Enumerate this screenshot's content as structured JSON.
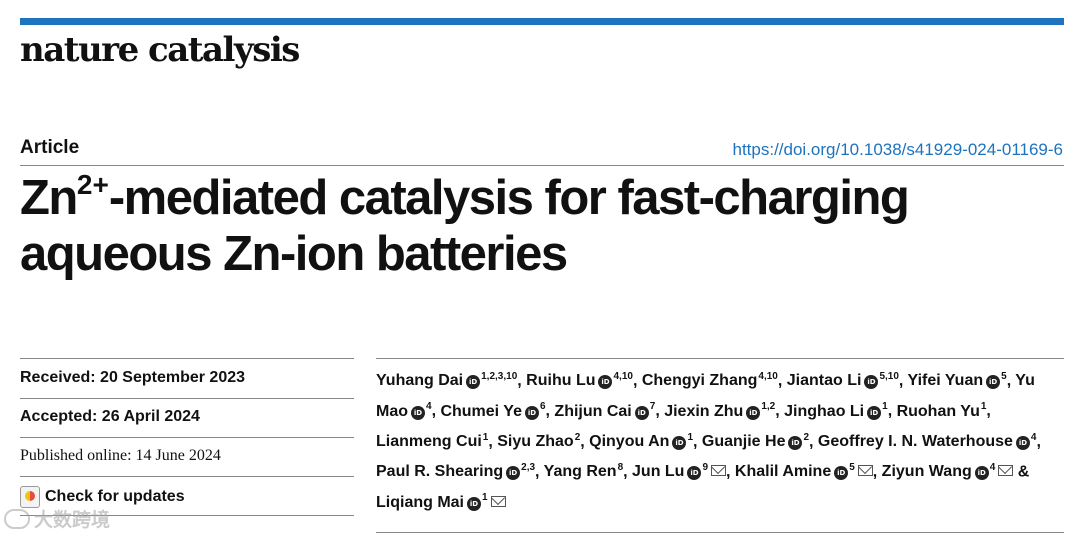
{
  "journal": {
    "name": "nature catalysis"
  },
  "article": {
    "type": "Article",
    "doi": "https://doi.org/10.1038/s41929-024-01169-6",
    "title": {
      "part1": "Zn",
      "sup": "2+",
      "part2": "-mediated catalysis for fast-charging aqueous Zn-ion batteries"
    }
  },
  "dates": {
    "received": "Received: 20 September 2023",
    "accepted": "Accepted: 26 April 2024",
    "published": "Published online: 14 June 2024"
  },
  "check_updates": {
    "label": "Check for updates"
  },
  "authors": [
    {
      "name": "Yuhang Dai",
      "orcid": true,
      "aff": "1,2,3,10",
      "email": false,
      "sep": ", "
    },
    {
      "name": "Ruihu Lu",
      "orcid": true,
      "aff": "4,10",
      "email": false,
      "sep": ", "
    },
    {
      "name": "Chengyi Zhang",
      "orcid": false,
      "aff": "4,10",
      "email": false,
      "sep": ", "
    },
    {
      "name": "Jiantao Li",
      "orcid": true,
      "aff": "5,10",
      "email": false,
      "sep": ", "
    },
    {
      "name": "Yifei Yuan",
      "orcid": true,
      "aff": "5",
      "email": false,
      "sep": ", "
    },
    {
      "name": "Yu Mao",
      "orcid": true,
      "aff": "4",
      "email": false,
      "sep": ", "
    },
    {
      "name": "Chumei Ye",
      "orcid": true,
      "aff": "6",
      "email": false,
      "sep": ", "
    },
    {
      "name": "Zhijun Cai",
      "orcid": true,
      "aff": "7",
      "email": false,
      "sep": ", "
    },
    {
      "name": "Jiexin Zhu",
      "orcid": true,
      "aff": "1,2",
      "email": false,
      "sep": ", "
    },
    {
      "name": "Jinghao Li",
      "orcid": true,
      "aff": "1",
      "email": false,
      "sep": ", "
    },
    {
      "name": "Ruohan Yu",
      "orcid": false,
      "aff": "1",
      "email": false,
      "sep": ", "
    },
    {
      "name": "Lianmeng Cui",
      "orcid": false,
      "aff": "1",
      "email": false,
      "sep": ", "
    },
    {
      "name": "Siyu Zhao",
      "orcid": false,
      "aff": "2",
      "email": false,
      "sep": ", "
    },
    {
      "name": "Qinyou An",
      "orcid": true,
      "aff": "1",
      "email": false,
      "sep": ", "
    },
    {
      "name": "Guanjie He",
      "orcid": true,
      "aff": "2",
      "email": false,
      "sep": ", "
    },
    {
      "name": "Geoffrey I. N. Waterhouse",
      "orcid": true,
      "aff": "4",
      "email": false,
      "sep": ", "
    },
    {
      "name": "Paul R. Shearing",
      "orcid": true,
      "aff": "2,3",
      "email": false,
      "sep": ", "
    },
    {
      "name": "Yang Ren",
      "orcid": false,
      "aff": "8",
      "email": false,
      "sep": ", "
    },
    {
      "name": "Jun Lu",
      "orcid": true,
      "aff": "9",
      "email": true,
      "sep": ", "
    },
    {
      "name": "Khalil Amine",
      "orcid": true,
      "aff": "5",
      "email": true,
      "sep": ", "
    },
    {
      "name": "Ziyun Wang",
      "orcid": true,
      "aff": "4",
      "email": true,
      "sep": " & "
    },
    {
      "name": "Liqiang Mai",
      "orcid": true,
      "aff": "1",
      "email": true,
      "sep": ""
    }
  ],
  "watermark": {
    "text": "大数跨境"
  },
  "colors": {
    "accent": "#1e73be",
    "text": "#111111",
    "rule": "#888888"
  }
}
